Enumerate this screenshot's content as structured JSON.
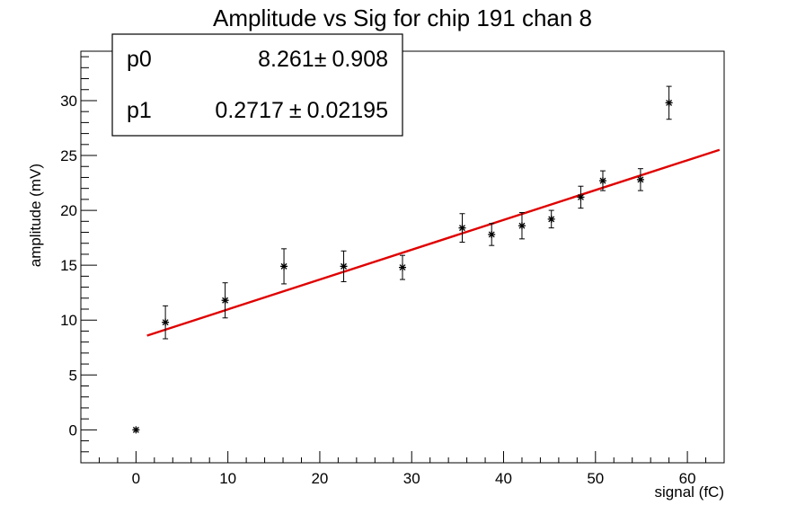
{
  "chart_data": {
    "type": "scatter",
    "title": "Amplitude vs Sig for chip 191 chan 8",
    "xlabel": "signal (fC)",
    "ylabel": "amplitude (mV)",
    "xlim": [
      -6,
      64
    ],
    "ylim": [
      -3,
      34.5
    ],
    "xticks": [
      0,
      10,
      20,
      30,
      40,
      50,
      60
    ],
    "yticks": [
      0,
      5,
      10,
      15,
      20,
      25,
      30
    ],
    "grid": false,
    "points": [
      {
        "x": 0,
        "y": 0,
        "err": 0
      },
      {
        "x": 3.2,
        "y": 9.8,
        "err": 1.5
      },
      {
        "x": 9.7,
        "y": 11.8,
        "err": 1.6
      },
      {
        "x": 16.1,
        "y": 14.9,
        "err": 1.6
      },
      {
        "x": 22.6,
        "y": 14.9,
        "err": 1.4
      },
      {
        "x": 29.0,
        "y": 14.8,
        "err": 1.1
      },
      {
        "x": 35.5,
        "y": 18.4,
        "err": 1.3
      },
      {
        "x": 38.7,
        "y": 17.8,
        "err": 1.0
      },
      {
        "x": 42.0,
        "y": 18.6,
        "err": 1.2
      },
      {
        "x": 45.2,
        "y": 19.2,
        "err": 0.8
      },
      {
        "x": 48.4,
        "y": 21.2,
        "err": 1.0
      },
      {
        "x": 50.8,
        "y": 22.7,
        "err": 0.9
      },
      {
        "x": 54.9,
        "y": 22.8,
        "err": 1.0
      },
      {
        "x": 58.0,
        "y": 29.8,
        "err": 1.5
      }
    ],
    "fit": {
      "p0": 8.261,
      "p1": 0.2717,
      "x_range": [
        1.2,
        63.5
      ],
      "color": "#e00000"
    },
    "stats_box": {
      "position": "top-left",
      "rows": [
        {
          "name": "p0",
          "value": "8.261",
          "pm": "±",
          "error": "0.908"
        },
        {
          "name": "p1",
          "value": "0.2717",
          "pm": "±",
          "error": "0.02195"
        }
      ]
    }
  }
}
